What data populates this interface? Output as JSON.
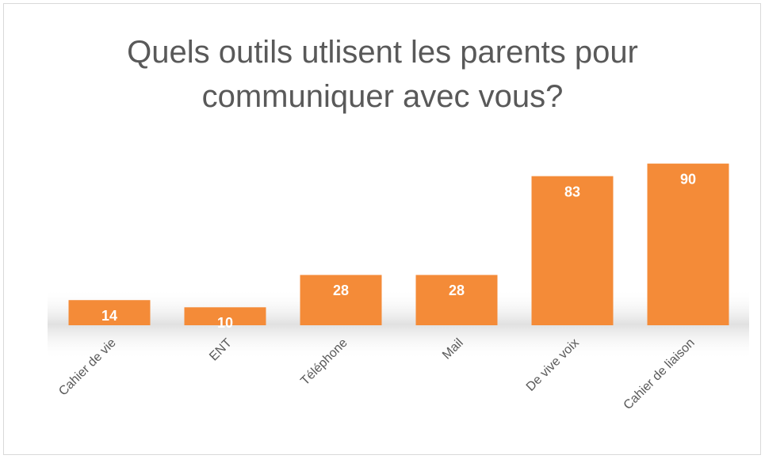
{
  "chart_data": {
    "type": "bar",
    "title": "Quels outils utlisent les parents pour communiquer avec vous?",
    "categories": [
      "Cahier de vie",
      "ENT",
      "Téléphone",
      "Mail",
      "De vive voix",
      "Cahier de liaison"
    ],
    "values": [
      14,
      10,
      28,
      28,
      83,
      90
    ],
    "color": "#f48b38",
    "ylim": [
      0,
      100
    ]
  }
}
